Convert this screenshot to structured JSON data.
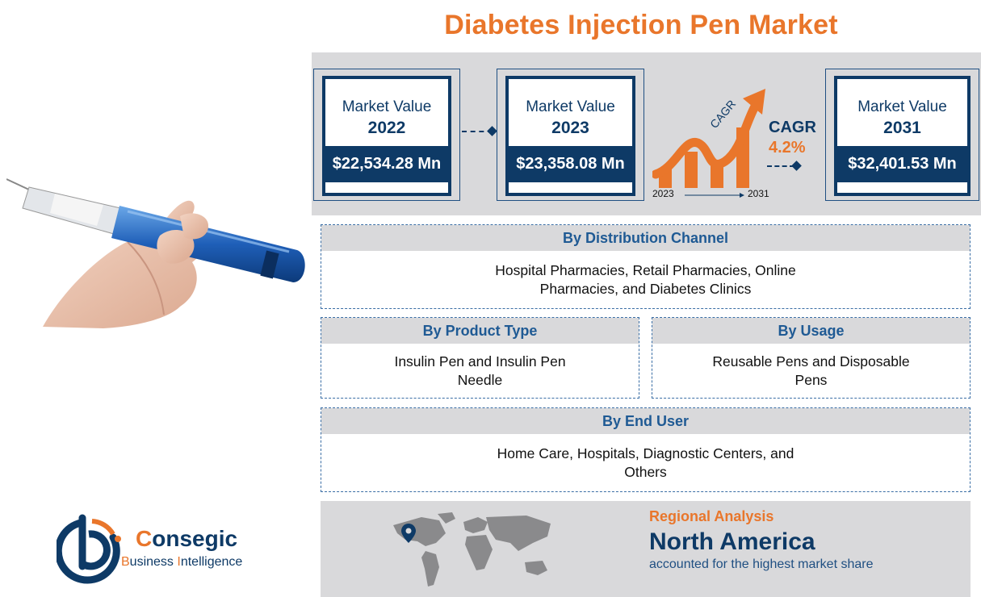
{
  "title": "Diabetes Injection Pen Market",
  "market_values": [
    {
      "label": "Market Value",
      "year": "2022",
      "value": "$22,534.28 Mn"
    },
    {
      "label": "Market Value",
      "year": "2023",
      "value": "$23,358.08 Mn"
    },
    {
      "label": "Market Value",
      "year": "2031",
      "value": "$32,401.53 Mn"
    }
  ],
  "cagr": {
    "arrow_text": "CAGR",
    "title": "CAGR",
    "value": "4.2%",
    "start_year": "2023",
    "end_year": "2031"
  },
  "segments": {
    "distribution": {
      "title": "By Distribution Channel",
      "body": "Hospital Pharmacies, Retail Pharmacies, Online Pharmacies, and Diabetes Clinics"
    },
    "product": {
      "title": "By Product Type",
      "body": "Insulin Pen and Insulin Pen Needle"
    },
    "usage": {
      "title": "By Usage",
      "body": "Reusable Pens and Disposable Pens"
    },
    "end_user": {
      "title": "By End User",
      "body": "Home Care, Hospitals, Diagnostic Centers, and Others"
    }
  },
  "regional": {
    "label": "Regional Analysis",
    "region": "North America",
    "description": "accounted for the highest market share"
  },
  "logo": {
    "name_first": "C",
    "name_rest": "onsegic",
    "sub_b": "B",
    "sub_rest1": "usiness ",
    "sub_i": "I",
    "sub_rest2": "ntelligence"
  },
  "colors": {
    "orange": "#e9762b",
    "navy": "#0e3a66",
    "gray": "#d9d9db"
  }
}
